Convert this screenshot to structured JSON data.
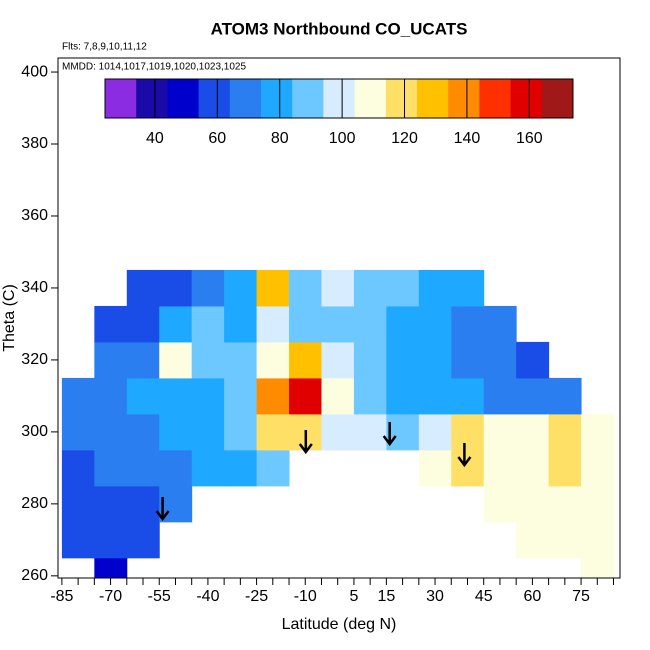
{
  "chart_data": {
    "type": "heatmap",
    "title": "ATOM3 Northbound CO_UCATS",
    "subtitle": "Flts: 7,8,9,10,11,12",
    "annotation": "MMDD: 1014,1017,1019,1020,1023,1025",
    "xlabel": "Latitude (deg N)",
    "ylabel": "Theta (C)",
    "x": [
      -80,
      -70,
      -60,
      -50,
      -40,
      -30,
      -20,
      -10,
      0,
      10,
      20,
      30,
      40,
      50,
      60,
      70,
      80
    ],
    "y": [
      260,
      270,
      280,
      290,
      300,
      310,
      320,
      330,
      340
    ],
    "z": [
      [
        null,
        50,
        null,
        null,
        null,
        null,
        null,
        null,
        null,
        null,
        null,
        null,
        null,
        null,
        null,
        null,
        110
      ],
      [
        58,
        55,
        58,
        null,
        null,
        null,
        null,
        null,
        null,
        null,
        null,
        null,
        null,
        null,
        105,
        110,
        108
      ],
      [
        60,
        58,
        62,
        65,
        null,
        null,
        null,
        null,
        null,
        null,
        null,
        null,
        null,
        108,
        105,
        112,
        110
      ],
      [
        62,
        65,
        70,
        72,
        75,
        80,
        85,
        null,
        null,
        null,
        null,
        110,
        115,
        108,
        110,
        118,
        112
      ],
      [
        68,
        70,
        72,
        75,
        78,
        85,
        115,
        120,
        100,
        95,
        90,
        100,
        118,
        112,
        108,
        115,
        110
      ],
      [
        70,
        72,
        78,
        80,
        82,
        90,
        135,
        160,
        110,
        88,
        82,
        78,
        75,
        72,
        68,
        70,
        null
      ],
      [
        null,
        65,
        72,
        110,
        90,
        85,
        110,
        125,
        100,
        85,
        80,
        75,
        70,
        70,
        62,
        null,
        null
      ],
      [
        null,
        55,
        62,
        78,
        88,
        75,
        95,
        92,
        88,
        85,
        80,
        78,
        72,
        68,
        null,
        null,
        null
      ],
      [
        null,
        null,
        55,
        60,
        68,
        80,
        130,
        90,
        95,
        88,
        85,
        80,
        75,
        null,
        null,
        null,
        null
      ]
    ],
    "xlim": [
      -86.2,
      87
    ],
    "xticks": [
      -85,
      -70,
      -55,
      -40,
      -25,
      -10,
      5,
      15,
      30,
      45,
      60,
      75
    ],
    "xminorticks": [
      -80,
      -75,
      -65,
      -60,
      -50,
      -45,
      -35,
      -30,
      -20,
      -15,
      -5,
      0,
      10,
      20,
      25,
      35,
      40,
      50,
      55,
      65,
      70,
      80,
      85
    ],
    "ylim": [
      259.4,
      403.9
    ],
    "yticks": [
      260,
      280,
      300,
      320,
      340,
      360,
      380,
      400
    ],
    "zlim": [
      24,
      174
    ],
    "zticks": [
      40,
      60,
      80,
      100,
      120,
      140,
      160
    ],
    "colors": [
      "#8b2be2",
      "#1a0aa8",
      "#0000cd",
      "#1a4ce8",
      "#2a7ef0",
      "#1ea8ff",
      "#6cc8ff",
      "#d8ecff",
      "#fdfde0",
      "#ffe066",
      "#ffc000",
      "#ff8c00",
      "#ff3000",
      "#e00000",
      "#a01818"
    ]
  }
}
